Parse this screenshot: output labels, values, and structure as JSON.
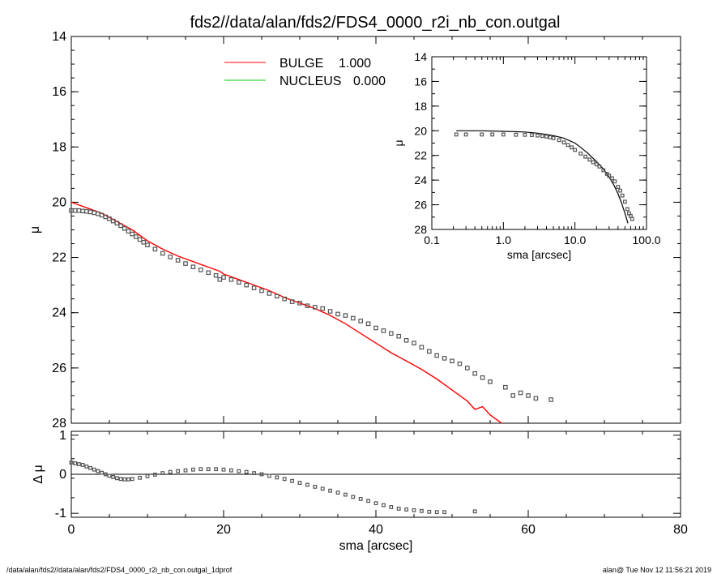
{
  "title": "fds2//data/alan/fds2/FDS4_0000_r2i_nb_con.outgal",
  "footer_left": "/data/alan/fds2//data/alan/fds2/FDS4_0000_r2i_nb_con.outgal_1dprof",
  "footer_right": "alan@  Tue Nov 12 11:56:21 2019",
  "colors": {
    "bulge": "#ff0000",
    "nucleus": "#00cc00",
    "data": "#555555",
    "axes": "#000000"
  },
  "chart_data": [
    {
      "type": "line",
      "panel": "main",
      "ylabel": "μ",
      "xlim": [
        0,
        80
      ],
      "ylim": [
        28,
        14
      ],
      "yticks": [
        "14",
        "16",
        "18",
        "20",
        "22",
        "24",
        "26",
        "28"
      ],
      "legend_placement": "top-center",
      "legend": [
        {
          "name": "BULGE",
          "value": "1.000",
          "color": "#ff0000"
        },
        {
          "name": "NUCLEUS",
          "value": "0.000",
          "color": "#00cc00"
        }
      ],
      "series": [
        {
          "name": "BULGE",
          "kind": "line",
          "x": [
            0,
            2,
            4,
            6,
            8,
            10,
            12,
            14,
            16,
            18,
            19.5,
            20,
            22,
            24,
            26,
            28,
            30,
            32,
            34,
            36,
            38,
            40,
            42,
            44,
            46,
            48,
            50,
            52,
            53,
            54,
            55,
            56,
            56.5
          ],
          "y": [
            20.0,
            20.2,
            20.4,
            20.7,
            21.0,
            21.4,
            21.7,
            21.95,
            22.15,
            22.35,
            22.5,
            22.6,
            22.8,
            23.0,
            23.2,
            23.45,
            23.65,
            23.85,
            24.1,
            24.4,
            24.75,
            25.1,
            25.45,
            25.75,
            26.05,
            26.4,
            26.8,
            27.2,
            27.5,
            27.4,
            27.7,
            27.9,
            28.0
          ]
        },
        {
          "name": "observed",
          "kind": "scatter",
          "x": [
            0,
            0.5,
            1,
            1.5,
            2,
            2.5,
            3,
            3.5,
            4,
            4.5,
            5,
            5.5,
            6,
            6.5,
            7,
            7.5,
            8,
            8.5,
            9,
            9.5,
            10,
            11,
            12,
            13,
            14,
            15,
            16,
            17,
            18,
            19,
            19.5,
            20,
            21,
            22,
            23,
            24,
            25,
            26,
            27,
            28,
            29,
            30,
            31,
            32,
            33,
            34,
            35,
            36,
            37,
            38,
            39,
            40,
            41,
            42,
            43,
            44,
            45,
            46,
            47,
            48,
            49,
            50,
            51,
            52,
            53,
            54,
            55,
            57,
            58,
            59,
            60,
            61,
            63
          ],
          "y": [
            20.3,
            20.3,
            20.3,
            20.32,
            20.33,
            20.35,
            20.38,
            20.42,
            20.47,
            20.53,
            20.6,
            20.68,
            20.76,
            20.85,
            20.95,
            21.05,
            21.15,
            21.25,
            21.35,
            21.45,
            21.55,
            21.7,
            21.85,
            21.98,
            22.1,
            22.22,
            22.34,
            22.45,
            22.55,
            22.65,
            22.8,
            22.72,
            22.8,
            22.9,
            23.0,
            23.1,
            23.2,
            23.3,
            23.4,
            23.5,
            23.6,
            23.65,
            23.75,
            23.8,
            23.85,
            23.95,
            24.05,
            24.1,
            24.2,
            24.3,
            24.4,
            24.55,
            24.65,
            24.75,
            24.85,
            25.0,
            25.1,
            25.25,
            25.4,
            25.55,
            25.65,
            25.75,
            25.85,
            26.0,
            26.2,
            26.35,
            26.5,
            26.7,
            27.0,
            26.9,
            27.0,
            27.1,
            27.15
          ]
        }
      ]
    },
    {
      "type": "scatter",
      "panel": "residual",
      "xlabel": "sma [arcsec]",
      "ylabel": "Δ μ",
      "xlim": [
        0,
        80
      ],
      "ylim": [
        -1.1,
        1.1
      ],
      "xticks": [
        "0",
        "20",
        "40",
        "60",
        "80"
      ],
      "yticks": [
        "1",
        "0",
        "-1"
      ],
      "zero_line": 0,
      "series": [
        {
          "name": "residual",
          "x": [
            0,
            0.5,
            1,
            1.5,
            2,
            2.5,
            3,
            3.5,
            4,
            4.5,
            5,
            5.5,
            6,
            6.5,
            7,
            7.5,
            8,
            9,
            10,
            11,
            12,
            13,
            14,
            15,
            16,
            17,
            18,
            19,
            20,
            21,
            22,
            23,
            24,
            25,
            26,
            27,
            28,
            29,
            30,
            31,
            32,
            33,
            34,
            35,
            36,
            37,
            38,
            39,
            40,
            41,
            42,
            43,
            44,
            45,
            46,
            47,
            48,
            49,
            53
          ],
          "y": [
            0.3,
            0.28,
            0.26,
            0.24,
            0.2,
            0.16,
            0.12,
            0.08,
            0.04,
            0.0,
            -0.04,
            -0.07,
            -0.1,
            -0.12,
            -0.13,
            -0.13,
            -0.12,
            -0.09,
            -0.05,
            -0.01,
            0.03,
            0.06,
            0.08,
            0.1,
            0.12,
            0.13,
            0.13,
            0.13,
            0.12,
            0.1,
            0.08,
            0.06,
            0.03,
            0.0,
            -0.04,
            -0.08,
            -0.12,
            -0.17,
            -0.22,
            -0.27,
            -0.32,
            -0.37,
            -0.42,
            -0.47,
            -0.52,
            -0.58,
            -0.63,
            -0.68,
            -0.74,
            -0.79,
            -0.84,
            -0.88,
            -0.9,
            -0.92,
            -0.94,
            -0.96,
            -0.97,
            -0.97,
            -0.95
          ]
        }
      ]
    },
    {
      "type": "line",
      "panel": "inset",
      "xlabel": "sma [arcsec]",
      "ylabel": "μ",
      "xscale": "log",
      "xlim": [
        0.1,
        100
      ],
      "ylim": [
        28,
        14
      ],
      "xticks": [
        "0.1",
        "1.0",
        "10.0",
        "100.0"
      ],
      "yticks": [
        "14",
        "16",
        "18",
        "20",
        "22",
        "24",
        "26",
        "28"
      ],
      "series": [
        {
          "name": "model",
          "kind": "line",
          "x": [
            0.22,
            0.5,
            1,
            2,
            3,
            4,
            5,
            6,
            7,
            8,
            10,
            12,
            15,
            20,
            25,
            30,
            35,
            40,
            45,
            50,
            55
          ],
          "y": [
            20.0,
            20.0,
            20.05,
            20.1,
            20.2,
            20.3,
            20.4,
            20.5,
            20.6,
            20.75,
            21.0,
            21.35,
            21.8,
            22.5,
            23.1,
            23.75,
            24.4,
            25.1,
            25.9,
            26.7,
            27.5
          ]
        },
        {
          "name": "observed",
          "kind": "scatter",
          "x": [
            0.22,
            0.3,
            0.5,
            0.7,
            1,
            1.5,
            2,
            2.5,
            3,
            3.5,
            4,
            4.5,
            5,
            6,
            7,
            8,
            9,
            10,
            12,
            14,
            16,
            18,
            20,
            22,
            25,
            28,
            30,
            33,
            36,
            40,
            43,
            46,
            50,
            54,
            57,
            60,
            63
          ],
          "y": [
            20.3,
            20.3,
            20.3,
            20.3,
            20.3,
            20.32,
            20.33,
            20.35,
            20.38,
            20.42,
            20.47,
            20.53,
            20.6,
            20.76,
            20.95,
            21.15,
            21.35,
            21.55,
            21.85,
            22.1,
            22.34,
            22.55,
            22.72,
            22.9,
            23.2,
            23.5,
            23.65,
            23.85,
            24.1,
            24.55,
            24.85,
            25.25,
            25.75,
            26.35,
            26.7,
            26.9,
            27.15
          ]
        }
      ]
    }
  ]
}
